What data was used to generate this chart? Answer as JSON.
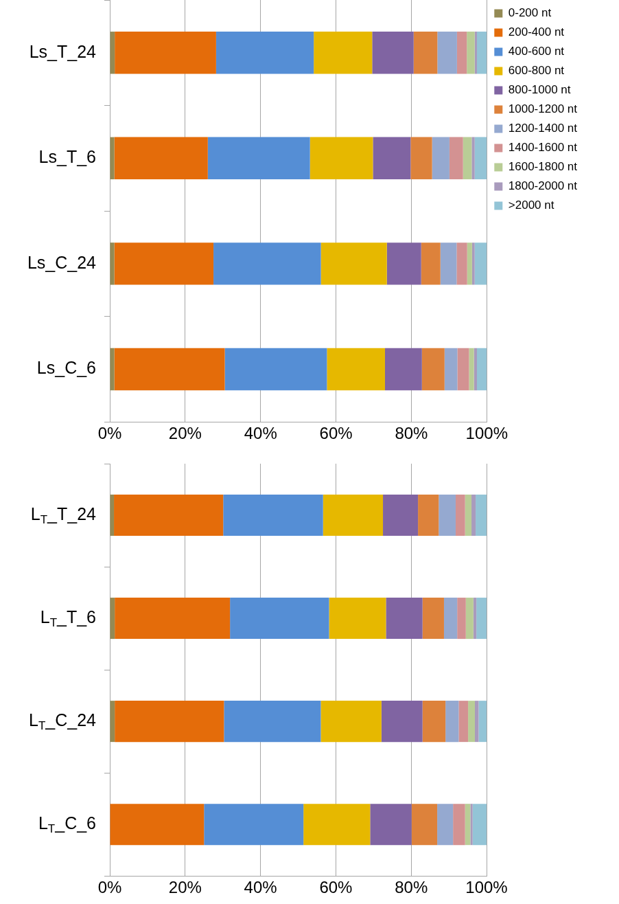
{
  "chart_data": [
    {
      "type": "bar",
      "orientation": "horizontal",
      "stacked": true,
      "grid": "x",
      "legend": "top right",
      "categories": [
        "Ls_T_24",
        "Ls_T_6",
        "Ls_C_24",
        "Ls_C_6"
      ],
      "xlim": [
        0,
        100
      ],
      "xticks": [
        {
          "value": 0,
          "label": "0%"
        },
        {
          "value": 20,
          "label": "20%"
        },
        {
          "value": 40,
          "label": "40%"
        },
        {
          "value": 60,
          "label": "60%"
        },
        {
          "value": 80,
          "label": "80%"
        },
        {
          "value": 100,
          "label": "100%"
        }
      ],
      "series": [
        {
          "name": "0-200 nt",
          "color": "#948a54",
          "values": [
            1.3,
            1.2,
            1.2,
            1.2
          ]
        },
        {
          "name": "200-400 nt",
          "color": "#e46c0a",
          "values": [
            26.9,
            24.8,
            26.3,
            29.3
          ]
        },
        {
          "name": "400-600 nt",
          "color": "#558ed5",
          "values": [
            25.9,
            27.1,
            28.5,
            27.1
          ]
        },
        {
          "name": "600-800 nt",
          "color": "#e6b800",
          "values": [
            15.5,
            16.7,
            17.5,
            15.4
          ]
        },
        {
          "name": "800-1000 nt",
          "color": "#8064a2",
          "values": [
            11.0,
            10.0,
            9.1,
            9.8
          ]
        },
        {
          "name": "1000-1200 nt",
          "color": "#dd823b",
          "values": [
            6.3,
            5.7,
            5.1,
            6.0
          ]
        },
        {
          "name": "1200-1400 nt",
          "color": "#95a9d0",
          "values": [
            5.2,
            4.6,
            4.3,
            3.4
          ]
        },
        {
          "name": "1400-1600 nt",
          "color": "#d39292",
          "values": [
            2.6,
            3.6,
            2.8,
            3.1
          ]
        },
        {
          "name": "1600-1800 nt",
          "color": "#b9cd96",
          "values": [
            2.1,
            2.3,
            1.3,
            1.3
          ]
        },
        {
          "name": "1800-2000 nt",
          "color": "#a99bbd",
          "values": [
            0.6,
            0.8,
            0.7,
            0.8
          ]
        },
        {
          "name": ">2000 nt",
          "color": "#93c4d6",
          "values": [
            2.6,
            3.2,
            3.2,
            2.6
          ]
        }
      ]
    },
    {
      "type": "bar",
      "orientation": "horizontal",
      "stacked": true,
      "grid": "x",
      "categories": [
        "L$_{T}$_T_24",
        "L$_{T}$_T_6",
        "L$_{T}$_C_24",
        "L$_{T}$_C_6"
      ],
      "xlim": [
        0,
        100
      ],
      "xticks": [
        {
          "value": 0,
          "label": "0%"
        },
        {
          "value": 20,
          "label": "20%"
        },
        {
          "value": 40,
          "label": "40%"
        },
        {
          "value": 60,
          "label": "60%"
        },
        {
          "value": 80,
          "label": "80%"
        },
        {
          "value": 100,
          "label": "100%"
        }
      ],
      "series": [
        {
          "color": "#948a54",
          "values": [
            1.1,
            1.3,
            1.3,
            0
          ]
        },
        {
          "color": "#e46c0a",
          "values": [
            29.0,
            30.6,
            29.0,
            25.0
          ]
        },
        {
          "color": "#558ed5",
          "values": [
            26.5,
            26.3,
            25.7,
            26.4
          ]
        },
        {
          "color": "#e6b800",
          "values": [
            15.9,
            15.1,
            16.1,
            17.7
          ]
        },
        {
          "color": "#8064a2",
          "values": [
            9.3,
            9.7,
            10.9,
            11.0
          ]
        },
        {
          "color": "#dd823b",
          "values": [
            5.5,
            5.7,
            6.1,
            6.8
          ]
        },
        {
          "color": "#95a9d0",
          "values": [
            4.5,
            3.5,
            3.5,
            4.2
          ]
        },
        {
          "color": "#d39292",
          "values": [
            2.5,
            2.3,
            2.5,
            3.2
          ]
        },
        {
          "color": "#b9cd96",
          "values": [
            1.7,
            2.0,
            1.8,
            1.4
          ]
        },
        {
          "color": "#a99bbd",
          "values": [
            1.1,
            0.8,
            1.0,
            0.6
          ]
        },
        {
          "color": "#93c4d6",
          "values": [
            2.9,
            2.7,
            2.1,
            3.7
          ]
        }
      ]
    }
  ]
}
